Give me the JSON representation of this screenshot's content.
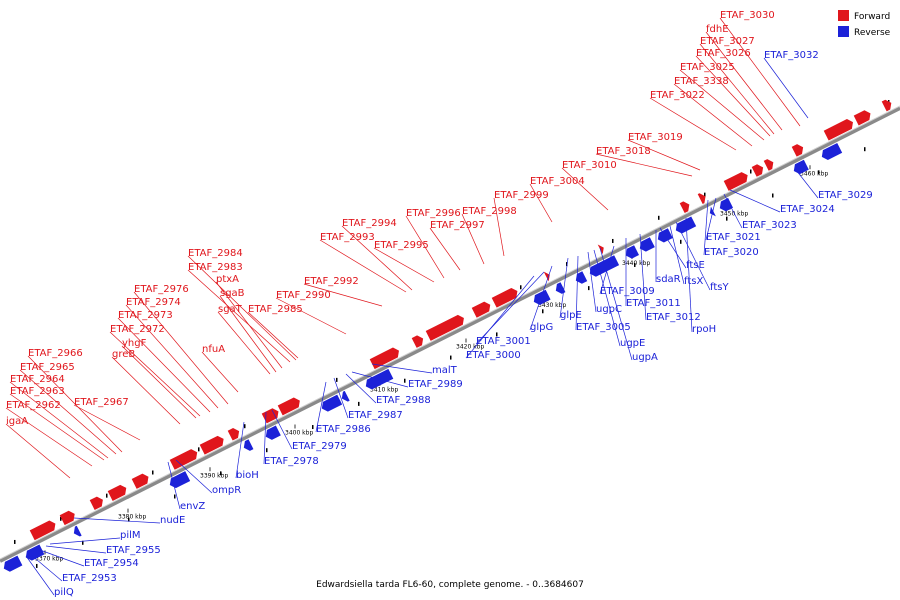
{
  "caption": "Edwardsiella tarda FL6-60, complete genome. - 0..3684607",
  "legend": {
    "forward_label": "Forward",
    "reverse_label": "Reverse",
    "forward_color": "#e0161c",
    "reverse_color": "#1c22d8"
  },
  "scale_ticks": [
    "3370 kbp",
    "3380 kbp",
    "3390 kbp",
    "3400 kbp",
    "3410 kbp",
    "3420 kbp",
    "3430 kbp",
    "3440 kbp",
    "3450 kbp",
    "3460 kbp"
  ],
  "forward_genes": [
    "igaA",
    "ETAF_2962",
    "ETAF_2963",
    "ETAF_2964",
    "ETAF_2965",
    "ETAF_2966",
    "ETAF_2967",
    "greB",
    "yhgF",
    "ETAF_2972",
    "ETAF_2973",
    "ETAF_2974",
    "ETAF_2976",
    "nfuA",
    "sgaT",
    "sgaB",
    "ptxA",
    "ETAF_2983",
    "ETAF_2984",
    "ETAF_2985",
    "ETAF_2990",
    "ETAF_2992",
    "ETAF_2993",
    "ETAF_2994",
    "ETAF_2995",
    "ETAF_2996",
    "ETAF_2997",
    "ETAF_2998",
    "ETAF_2999",
    "ETAF_3004",
    "ETAF_3010",
    "ETAF_3018",
    "ETAF_3019",
    "ETAF_3022",
    "ETAF_3338",
    "ETAF_3025",
    "ETAF_3026",
    "ETAF_3027",
    "fdhE",
    "ETAF_3030"
  ],
  "reverse_genes": [
    "pilQ",
    "ETAF_2953",
    "ETAF_2954",
    "ETAF_2955",
    "pilM",
    "nudE",
    "envZ",
    "ompR",
    "bioH",
    "ETAF_2978",
    "ETAF_2979",
    "ETAF_2986",
    "ETAF_2987",
    "ETAF_2988",
    "ETAF_2989",
    "malT",
    "ETAF_3000",
    "ETAF_3001",
    "glpG",
    "glpE",
    "ETAF_3005",
    "ugpC",
    "ugpE",
    "ugpA",
    "ETAF_3009",
    "ETAF_3011",
    "ETAF_3012",
    "sdaR",
    "ftsE",
    "ftsX",
    "ftsY",
    "rpoH",
    "ETAF_3020",
    "ETAF_3021",
    "ETAF_3023",
    "ETAF_3024",
    "ETAF_3029",
    "ETAF_3032"
  ]
}
